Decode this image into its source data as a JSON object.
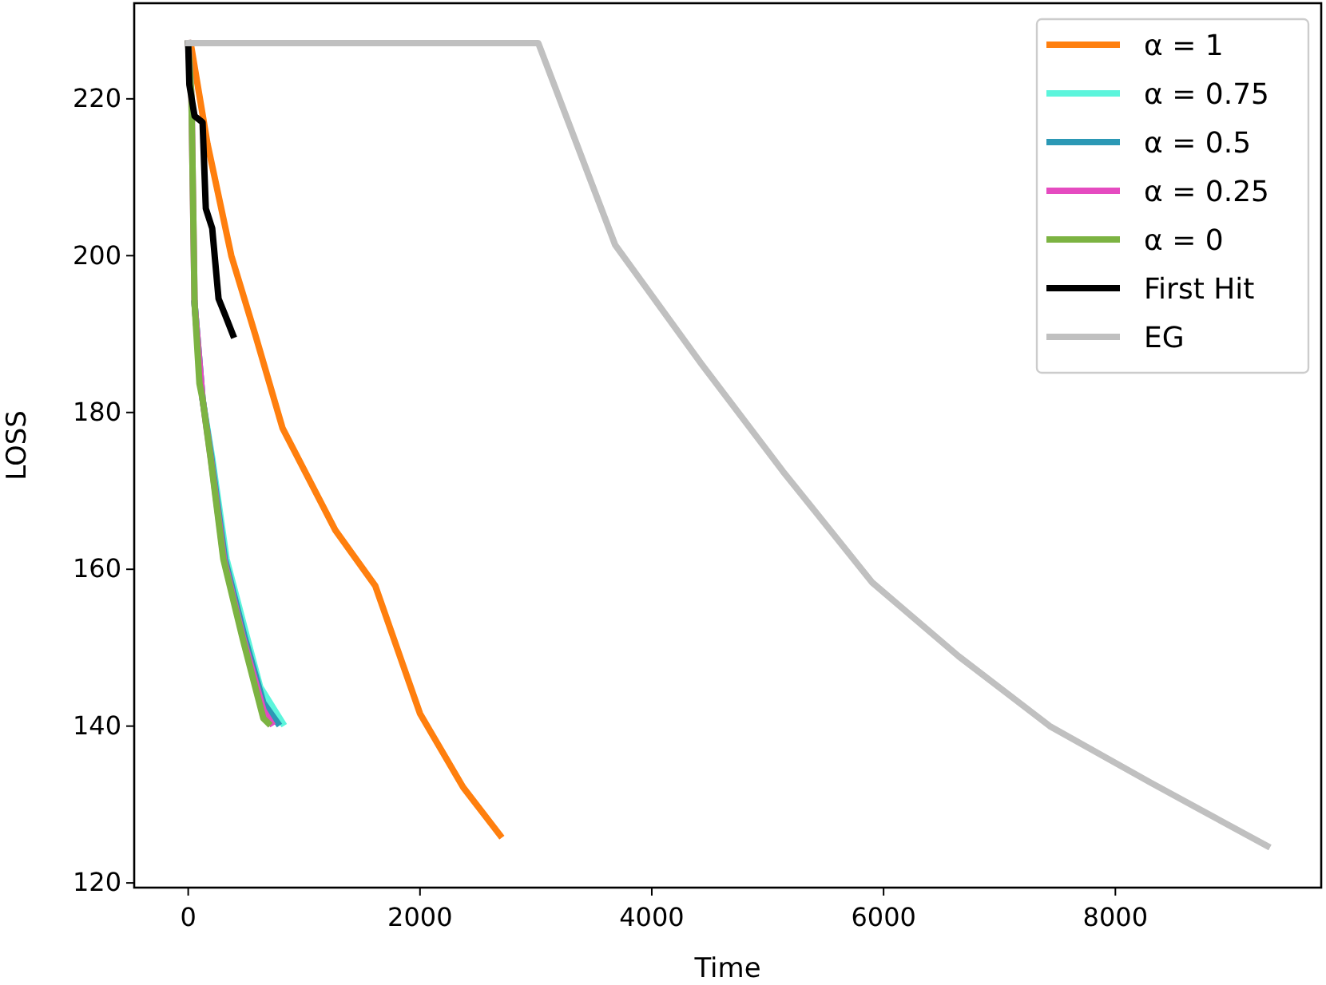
{
  "chart_data": {
    "type": "line",
    "xlabel": "Time",
    "ylabel": "LOSS",
    "xlim": [
      -466,
      9776
    ],
    "ylim": [
      119.4,
      232.2
    ],
    "xticks": [
      0,
      2000,
      4000,
      6000,
      8000
    ],
    "yticks": [
      120,
      140,
      160,
      180,
      200,
      220
    ],
    "grid": false,
    "legend": "top right",
    "line_style": "solid",
    "marker": "none",
    "series": [
      {
        "name": "α = 1",
        "color": "#ff7f0e",
        "x": [
          28,
          166,
          372,
          579,
          814,
          1269,
          1614,
          2000,
          2372,
          2690
        ],
        "values": [
          226.5,
          214.3,
          200,
          189.9,
          178,
          165,
          157.9,
          141.6,
          132.2,
          126.1
        ]
      },
      {
        "name": "α = 0.75",
        "color": "#5cf5dc",
        "x": [
          55,
          124,
          207,
          331,
          510,
          621,
          814
        ],
        "values": [
          193.9,
          181.7,
          174.2,
          161.3,
          151.2,
          145,
          140.4
        ]
      },
      {
        "name": "α = 0.5",
        "color": "#2b98b5",
        "x": [
          55,
          124,
          200,
          317,
          490,
          648,
          772
        ],
        "values": [
          193.9,
          181.7,
          174.2,
          161.3,
          151.2,
          143,
          140.4
        ]
      },
      {
        "name": "α = 0.25",
        "color": "#e54bc0",
        "x": [
          0,
          28,
          55,
          124,
          195,
          308,
          475,
          650,
          717
        ],
        "values": [
          227.1,
          220.4,
          193.9,
          181.7,
          174.2,
          161.3,
          151.2,
          142,
          140.4
        ]
      },
      {
        "name": "α = 0",
        "color": "#7cb342",
        "x": [
          0,
          28,
          55,
          97,
          124,
          193,
          303,
          469,
          648,
          690
        ],
        "values": [
          227.1,
          220.4,
          193.9,
          183.7,
          181.7,
          174.2,
          161.3,
          151.2,
          141,
          140.4
        ]
      },
      {
        "name": "First Hit",
        "color": "#000000",
        "x": [
          0,
          10,
          55,
          124,
          152,
          207,
          262,
          317,
          386
        ],
        "values": [
          227,
          221.8,
          217.8,
          217,
          206,
          203.5,
          194.5,
          192.5,
          189.9
        ]
      },
      {
        "name": "EG",
        "color": "#c0c0c0",
        "x": [
          0,
          3021,
          3683,
          4428,
          5131,
          5903,
          6648,
          7434,
          8303,
          9310
        ],
        "values": [
          227.1,
          227.1,
          201.4,
          186.2,
          172.5,
          158.3,
          148.9,
          140,
          132.8,
          124.7
        ]
      }
    ]
  }
}
